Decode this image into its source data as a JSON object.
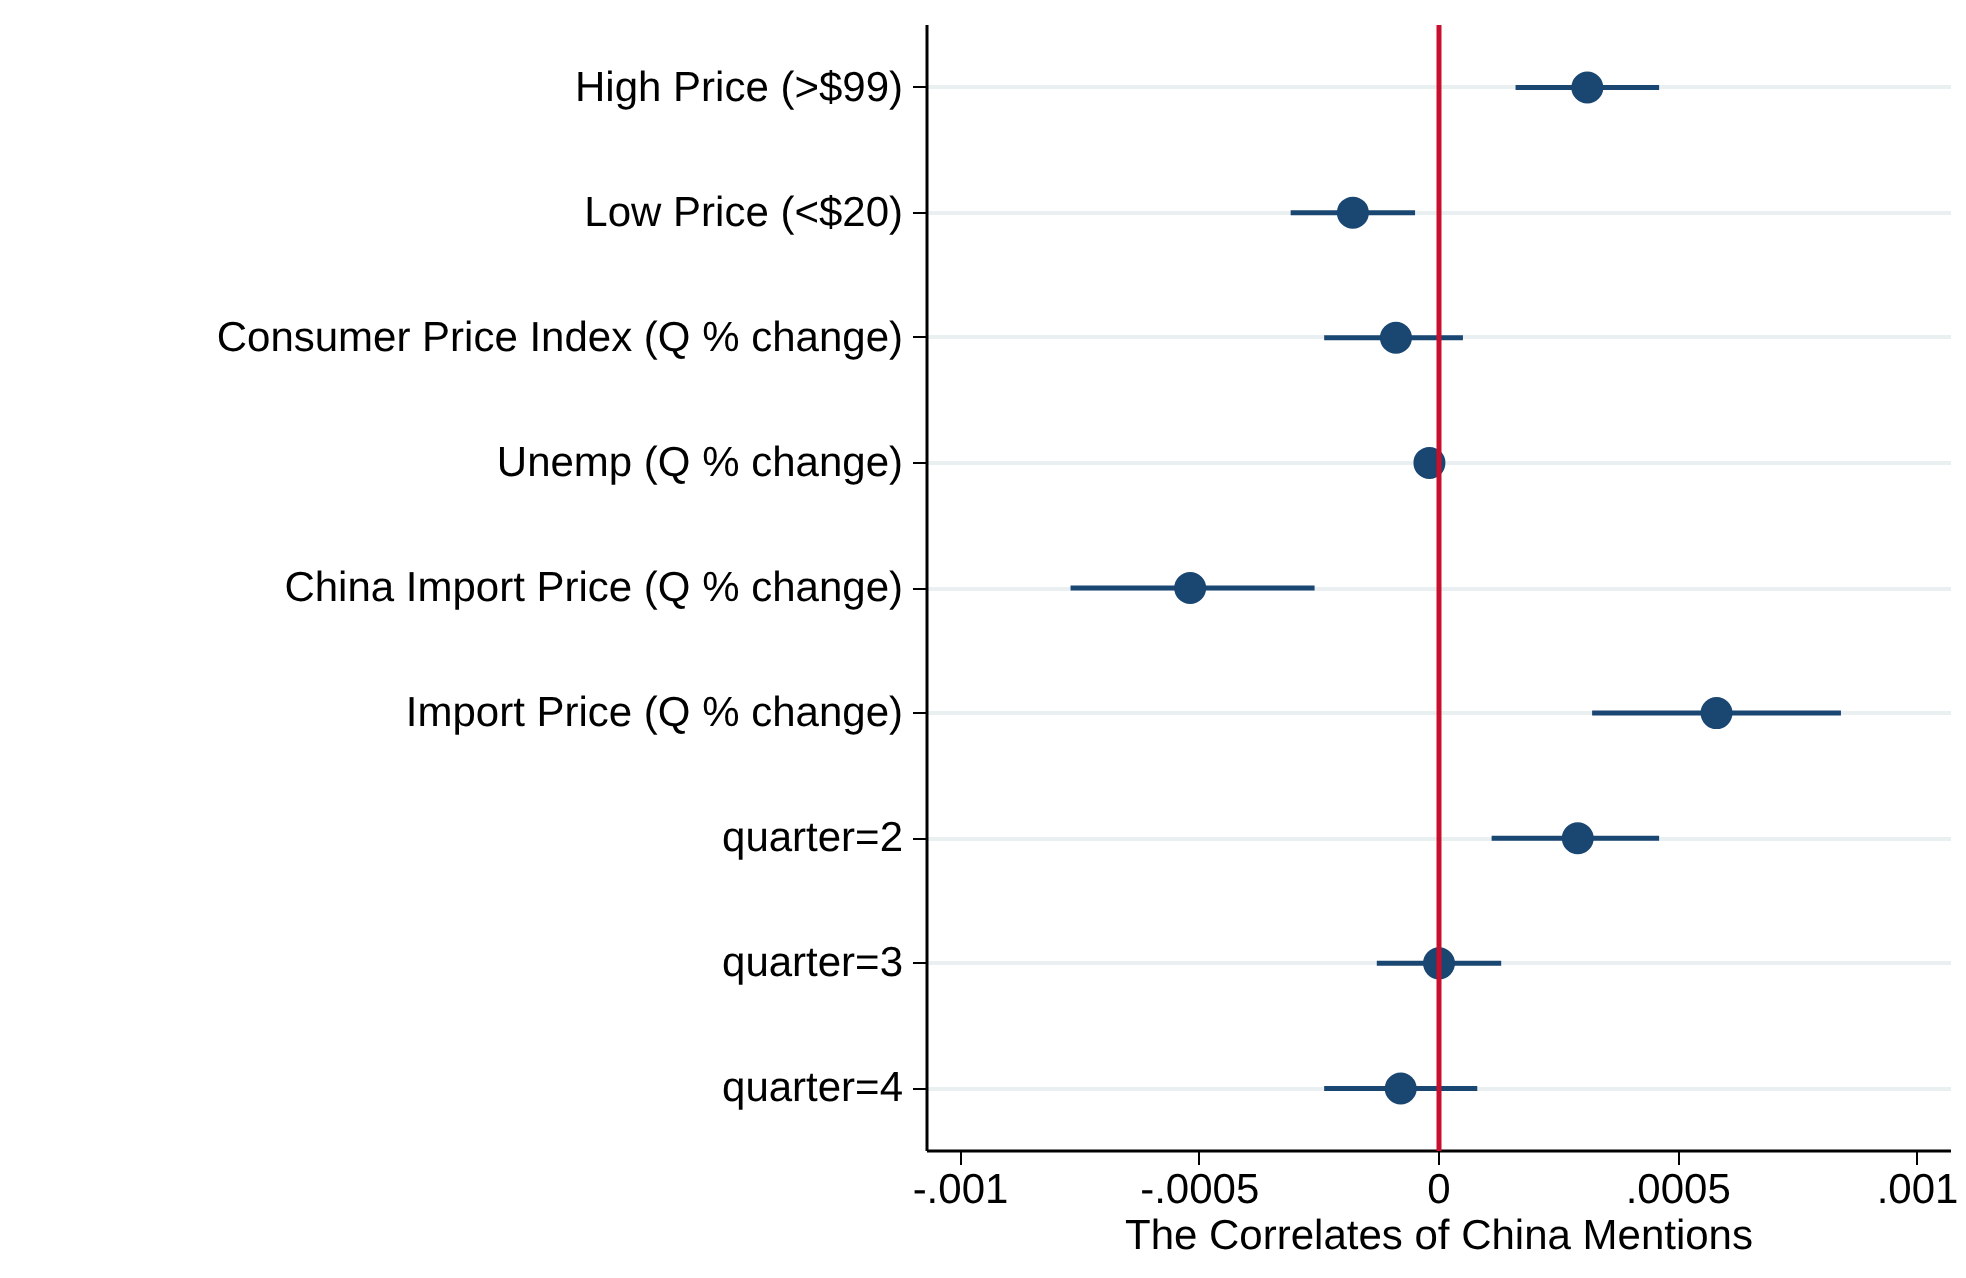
{
  "chart_data": {
    "type": "scatter",
    "orientation": "horizontal",
    "xlabel": "The Correlates of China Mentions",
    "categories": [
      "High Price (>$99)",
      "Low Price (<$20)",
      "Consumer Price Index (Q % change)",
      "Unemp (Q % change)",
      "China Import Price (Q % change)",
      "Import Price (Q % change)",
      "quarter=2",
      "quarter=3",
      "quarter=4"
    ],
    "series": [
      {
        "color": "#1a4672",
        "values": [
          0.00031,
          -0.00018,
          -9e-05,
          -2e-05,
          -0.00052,
          0.00058,
          0.00029,
          0.0,
          -8e-05
        ],
        "errors": [
          [
            0.00016,
            0.00046
          ],
          [
            -0.00031,
            -5e-05
          ],
          [
            -0.00024,
            5e-05
          ],
          null,
          [
            -0.00077,
            -0.00026
          ],
          [
            0.00032,
            0.00084
          ],
          [
            0.00011,
            0.00046
          ],
          [
            -0.00013,
            0.00013
          ],
          [
            -0.00024,
            8e-05
          ]
        ]
      }
    ],
    "xlim": [
      -0.00107,
      0.00107
    ],
    "xticks": [
      {
        "value": -0.001,
        "label": "-.001"
      },
      {
        "value": -0.0005,
        "label": "-.0005"
      },
      0,
      {
        "value": 0.0005,
        "label": ".0005"
      },
      {
        "value": 0.001,
        "label": ".001"
      }
    ],
    "ref_lines": [
      {
        "axis": "x",
        "value": 0,
        "color": "#c8102e"
      }
    ],
    "grid": "y",
    "marker": "circle"
  }
}
